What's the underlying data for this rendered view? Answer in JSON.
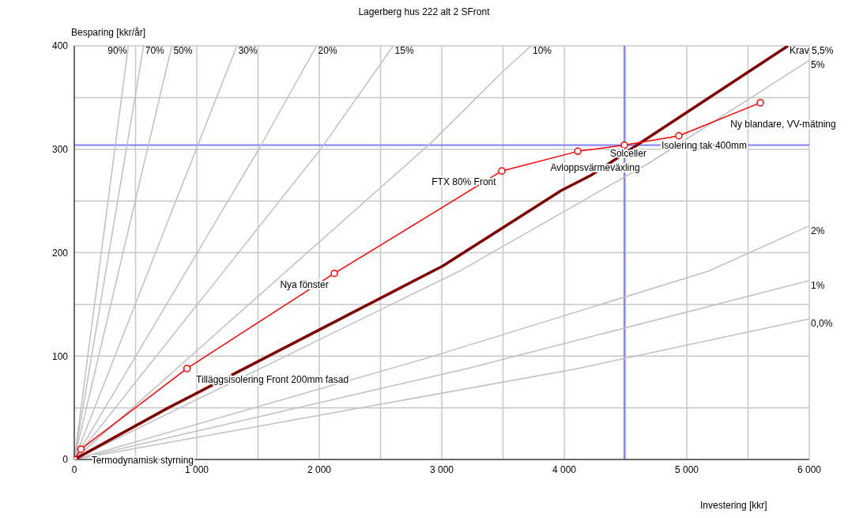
{
  "chart_data": {
    "type": "line",
    "title": "Lagerberg hus 222 alt 2 SFront",
    "xlabel": "Investering [kkr]",
    "ylabel": "Besparing [kkr/år]",
    "xlim": [
      0,
      6000
    ],
    "ylim": [
      0,
      400
    ],
    "xticks": [
      0,
      {
        "value": 500,
        "label": null
      },
      {
        "value": 1000,
        "label": "1 000"
      },
      {
        "value": 1500,
        "label": null
      },
      {
        "value": 2000,
        "label": "2 000"
      },
      {
        "value": 2500,
        "label": null
      },
      {
        "value": 3000,
        "label": "3 000"
      },
      {
        "value": 3500,
        "label": null
      },
      {
        "value": 4000,
        "label": "4 000"
      },
      {
        "value": 4500,
        "label": null
      },
      {
        "value": 5000,
        "label": "5 000"
      },
      {
        "value": 5500,
        "label": null
      },
      {
        "value": 6000,
        "label": "6 000"
      }
    ],
    "yticks": [
      0,
      {
        "value": 50,
        "label": null
      },
      100,
      {
        "value": 150,
        "label": null
      },
      200,
      {
        "value": 250,
        "label": null
      },
      300,
      {
        "value": 350,
        "label": null
      },
      400
    ],
    "grid": true,
    "series": [
      {
        "name": "90%",
        "color": "#c0c0c0",
        "marker": "none",
        "x": [
          0,
          441
        ],
        "values": [
          0,
          400
        ]
      },
      {
        "name": "70%",
        "color": "#c0c0c0",
        "marker": "none",
        "x": [
          0,
          566
        ],
        "values": [
          0,
          400
        ]
      },
      {
        "name": "50%",
        "color": "#c0c0c0",
        "marker": "none",
        "x": [
          0,
          796
        ],
        "values": [
          0,
          400
        ]
      },
      {
        "name": "30%",
        "color": "#c0c0c0",
        "marker": "none",
        "x": [
          0,
          1327
        ],
        "values": [
          0,
          400
        ]
      },
      {
        "name": "20%",
        "color": "#c0c0c0",
        "marker": "none",
        "x": [
          0,
          1506,
          1978
        ],
        "values": [
          0,
          300,
          400
        ]
      },
      {
        "name": "15%",
        "color": "#c0c0c0",
        "marker": "none",
        "x": [
          0,
          2017,
          2604
        ],
        "values": [
          0,
          301,
          400
        ]
      },
      {
        "name": "10%",
        "color": "#c0c0c0",
        "marker": "none",
        "x": [
          0,
          2910,
          3497,
          3729
        ],
        "values": [
          0,
          306,
          375,
          400
        ]
      },
      {
        "name": "5%",
        "color": "#c0c0c0",
        "marker": "none",
        "x": [
          0,
          3142,
          4697,
          6000
        ],
        "values": [
          0,
          182,
          287,
          386
        ]
      },
      {
        "name": "2%",
        "color": "#c0c0c0",
        "marker": "none",
        "x": [
          0,
          2877,
          5174,
          6000
        ],
        "values": [
          0,
          98,
          182,
          226
        ]
      },
      {
        "name": "1%",
        "color": "#c0c0c0",
        "marker": "none",
        "x": [
          0,
          3209,
          6000
        ],
        "values": [
          0,
          88,
          173
        ]
      },
      {
        "name": "0,0%",
        "color": "#c0c0c0",
        "marker": "none",
        "x": [
          0,
          4071,
          6000
        ],
        "values": [
          0,
          87,
          136
        ]
      },
      {
        "name": "Krav 5,5%",
        "color": "#800000",
        "marker": "none",
        "x": [
          0,
          768,
          2058,
          3006,
          3974,
          4220,
          5826
        ],
        "values": [
          0,
          50,
          129,
          187,
          260,
          275,
          400
        ]
      },
      {
        "color": "#ff0000",
        "marker": "circle",
        "x": [
          0,
          54,
          920,
          2123,
          3490,
          4110,
          4490,
          4935,
          5600
        ],
        "values": [
          0,
          10,
          88,
          180,
          279,
          298,
          304,
          313,
          345
        ],
        "value_labels": [
          null,
          "Termodynamisk styrning",
          "Tilläggsisolering Front 200mm fasad",
          "Nya fönster",
          "FTX 80% Front",
          "Avloppsvärmeväxling",
          "Solceller",
          "Isolering tak 400mm",
          "Ny blandare, VV-mätning"
        ]
      }
    ],
    "ref_lines": [
      {
        "axis": "x",
        "value": 4490,
        "color": "#8080ff"
      },
      {
        "axis": "y",
        "value": 304,
        "color": "#8080ff"
      }
    ]
  }
}
